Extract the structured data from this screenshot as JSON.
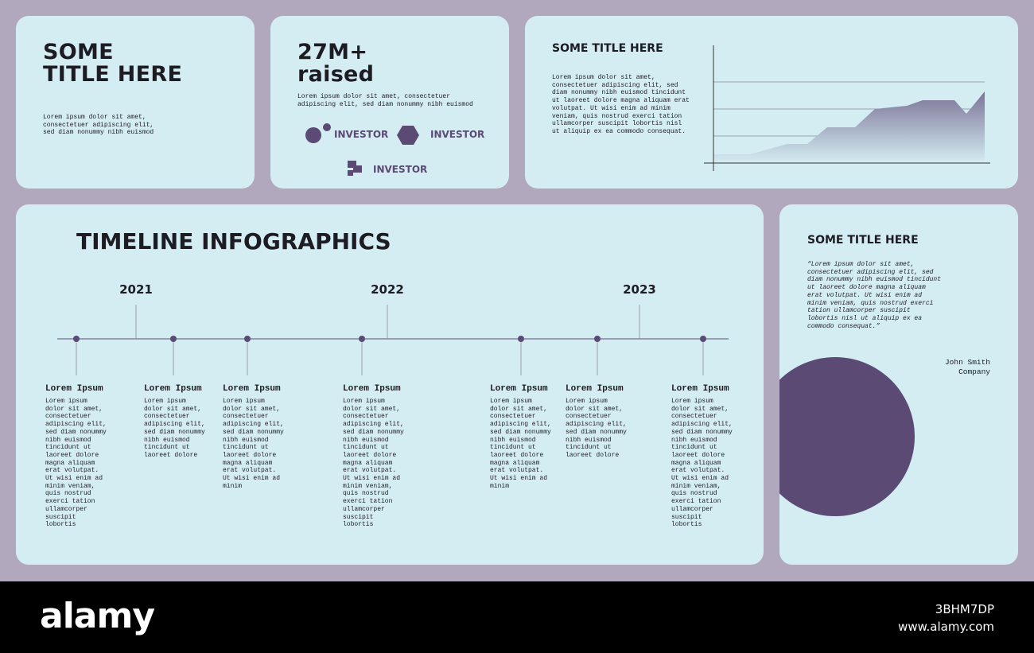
{
  "intro": {
    "title_lines": [
      "SOME",
      "TITLE HERE"
    ],
    "text": "Lorem ipsum dolor sit amet, consectetuer adipiscing elit, sed diam nonummy nibh euismod"
  },
  "stats": {
    "headline_lines": [
      "27M+",
      "raised"
    ],
    "text": "Lorem ipsum dolor sit amet, consectetuer adipiscing elit, sed diam nonummy nibh euismod",
    "investors": [
      "INVESTOR",
      "INVESTOR",
      "INVESTOR"
    ]
  },
  "chart_card": {
    "title": "SOME TITLE HERE",
    "text": "Lorem ipsum dolor sit amet, consectetuer adipiscing elit, sed diam nonummy nibh euismod tincidunt ut laoreet dolore magna aliquam erat volutpat. Ut wisi enim ad minim veniam, quis nostrud exerci tation ullamcorper suscipit lobortis nisl ut aliquip ex ea commodo consequat."
  },
  "timeline": {
    "title": "TIMELINE INFOGRAPHICS",
    "years": [
      "2021",
      "2022",
      "2023"
    ],
    "events": [
      {
        "title": "Lorem Ipsum",
        "text": "Lorem ipsum dolor sit amet, consectetuer adipiscing elit, sed diam nonummy nibh euismod tincidunt ut laoreet dolore magna aliquam erat volutpat. Ut wisi enim ad minim veniam, quis nostrud exerci tation ullamcorper suscipit lobortis"
      },
      {
        "title": "Lorem Ipsum",
        "text": "Lorem ipsum dolor sit amet, consectetuer adipiscing elit, sed diam nonummy nibh euismod tincidunt ut laoreet dolore"
      },
      {
        "title": "Lorem Ipsum",
        "text": "Lorem ipsum dolor sit amet, consectetuer adipiscing elit, sed diam nonummy nibh euismod tincidunt ut laoreet dolore magna aliquam erat volutpat. Ut wisi enim ad minim"
      },
      {
        "title": "Lorem Ipsum",
        "text": "Lorem ipsum dolor sit amet, consectetuer adipiscing elit, sed diam nonummy nibh euismod tincidunt ut laoreet dolore magna aliquam erat volutpat. Ut wisi enim ad minim veniam, quis nostrud exerci tation ullamcorper suscipit lobortis"
      },
      {
        "title": "Lorem Ipsum",
        "text": "Lorem ipsum dolor sit amet, consectetuer adipiscing elit, sed diam nonummy nibh euismod tincidunt ut laoreet dolore magna aliquam erat volutpat. Ut wisi enim ad minim"
      },
      {
        "title": "Lorem Ipsum",
        "text": "Lorem ipsum dolor sit amet, consectetuer adipiscing elit, sed diam nonummy nibh euismod tincidunt ut laoreet dolore"
      },
      {
        "title": "Lorem Ipsum",
        "text": "Lorem ipsum dolor sit amet, consectetuer adipiscing elit, sed diam nonummy nibh euismod tincidunt ut laoreet dolore magna aliquam erat volutpat. Ut wisi enim ad minim veniam, quis nostrud exerci tation ullamcorper suscipit lobortis"
      }
    ]
  },
  "quote": {
    "title": "SOME TITLE HERE",
    "text": "“Lorem ipsum dolor sit amet, consectetuer adipiscing elit, sed diam nonummy nibh euismod tincidunt ut laoreet dolore magna aliquam erat volutpat. Ut wisi enim ad minim veniam, quis nostrud exerci tation ullamcorper suscipit lobortis nisl ut aliquip ex ea commodo consequat.”",
    "author": "John Smith",
    "company": "Company"
  },
  "footer": {
    "brand": "alamy",
    "image_id": "3BHM7DP",
    "url": "www.alamy.com"
  }
}
